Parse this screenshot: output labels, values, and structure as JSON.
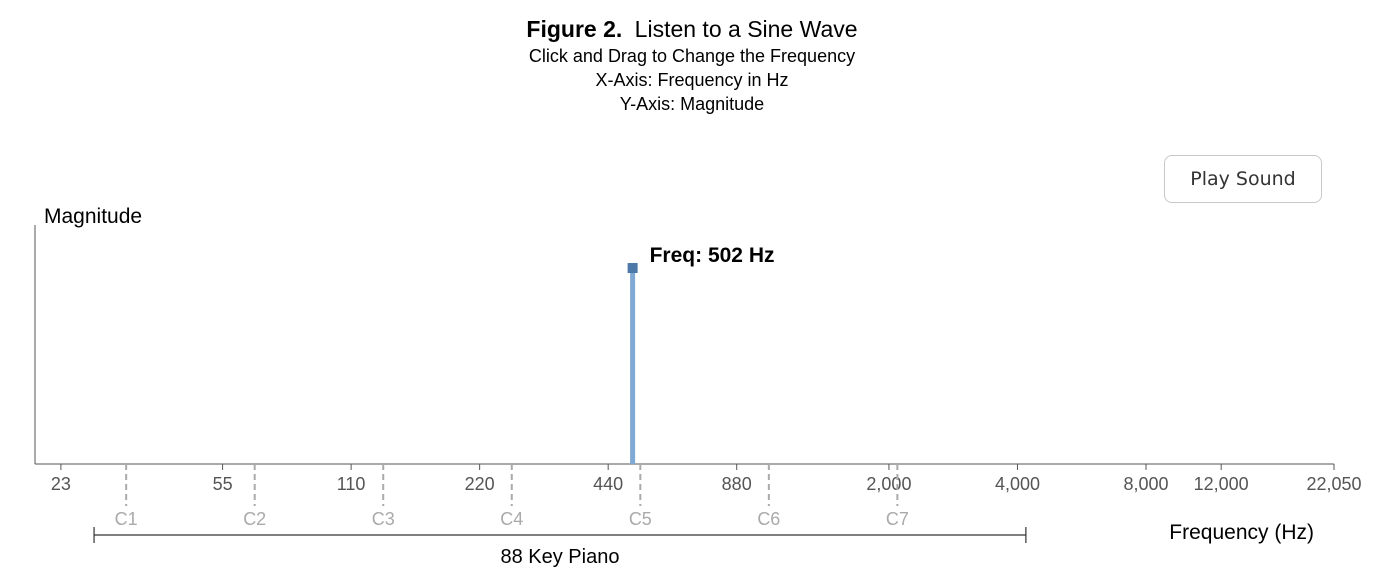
{
  "caption": {
    "figure_label": "Figure 2.",
    "title": "Listen to a Sine Wave",
    "lines": [
      "Click and Drag to Change the Frequency",
      "X-Axis: Frequency in Hz",
      "Y-Axis: Magnitude"
    ]
  },
  "play_button": {
    "label": "Play Sound"
  },
  "colors": {
    "stem": "#7fa8d2",
    "marker": "#4d79a8",
    "axis": "#555555",
    "note_line": "#aaaaaa",
    "note_text": "#aaaaaa"
  },
  "chart_data": {
    "type": "line",
    "ylabel": "Magnitude",
    "xlabel": "Frequency (Hz)",
    "x_scale": "log",
    "xlim": [
      20,
      22050
    ],
    "x_ticks": [
      {
        "value": 23,
        "label": "23"
      },
      {
        "value": 55,
        "label": "55"
      },
      {
        "value": 110,
        "label": "110"
      },
      {
        "value": 220,
        "label": "220"
      },
      {
        "value": 440,
        "label": "440"
      },
      {
        "value": 880,
        "label": "880"
      },
      {
        "value": 2000,
        "label": "2,000"
      },
      {
        "value": 4000,
        "label": "4,000"
      },
      {
        "value": 8000,
        "label": "8,000"
      },
      {
        "value": 12000,
        "label": "12,000"
      },
      {
        "value": 22050,
        "label": "22,050"
      }
    ],
    "note_markers": [
      {
        "value": 32.7,
        "label": "C1"
      },
      {
        "value": 65.4,
        "label": "C2"
      },
      {
        "value": 130.8,
        "label": "C3"
      },
      {
        "value": 261.6,
        "label": "C4"
      },
      {
        "value": 523.3,
        "label": "C5"
      },
      {
        "value": 1046.5,
        "label": "C6"
      },
      {
        "value": 2093,
        "label": "C7"
      }
    ],
    "piano_range": {
      "label": "88 Key Piano",
      "start": 27.5,
      "end": 4186
    },
    "sine": {
      "frequency": 502,
      "magnitude": 0.82,
      "label": "Freq: 502 Hz"
    },
    "ylim": [
      0,
      1
    ]
  }
}
